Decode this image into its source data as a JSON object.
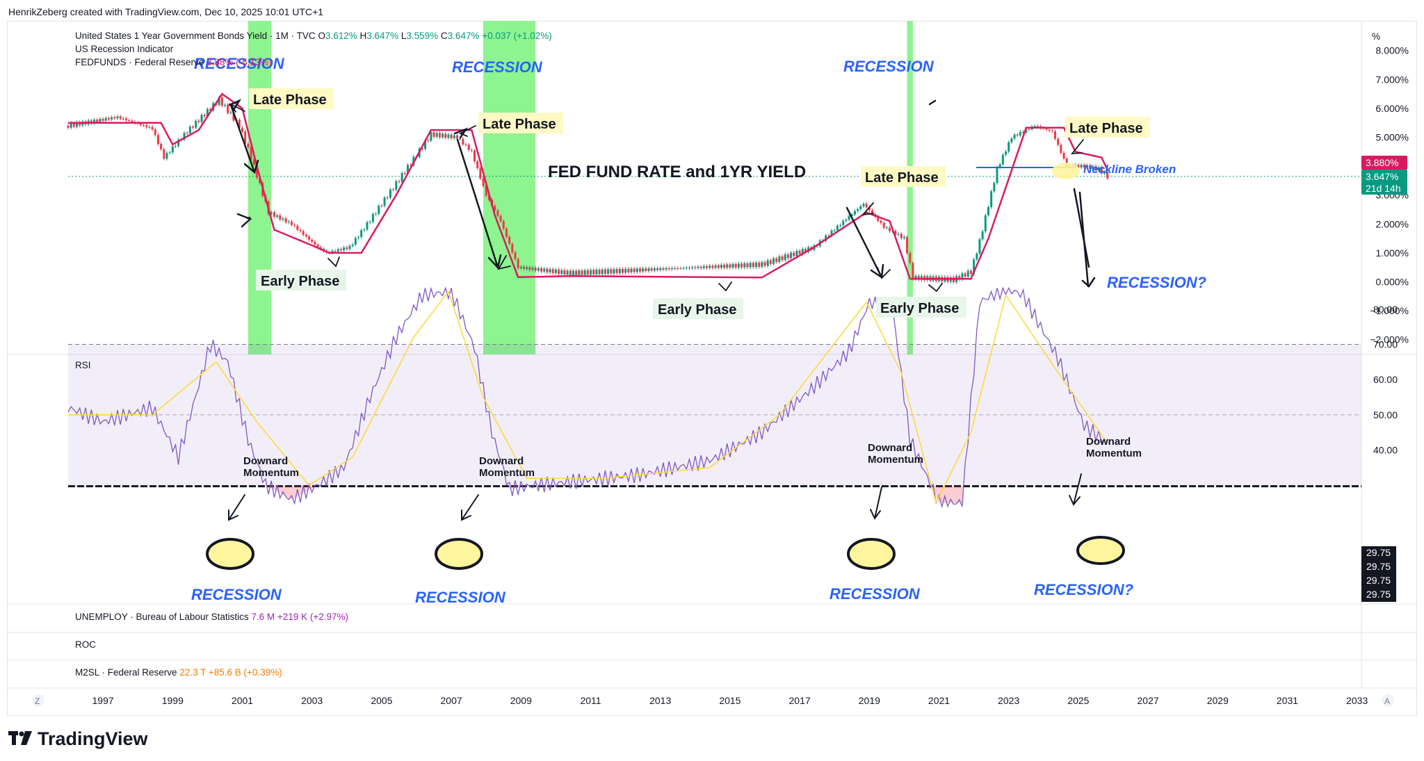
{
  "credit": "HenrikZeberg created with TradingView.com, Dec 10, 2025 10:01 UTC+1",
  "legend": {
    "symbol": "United States 1 Year Government Bonds Yield · 1M · TVC",
    "o_label": "O",
    "o_value": "3.612%",
    "h_label": "H",
    "h_value": "3.647%",
    "l_label": "L",
    "l_value": "3.559%",
    "c_label": "C",
    "c_value": "3.647%",
    "change": "+0.037 (+1.02%)",
    "indicator": "US Recession Indicator",
    "fedfunds": "FEDFUNDS · Federal Reserve",
    "fedfunds_value": "3.88% (-5.13%)"
  },
  "pct_button": "%",
  "title": "FED FUND RATE and 1YR YIELD",
  "annotations": {
    "recession": "RECESSION",
    "recession_q": "RECESSION?",
    "late_phase": "Late Phase",
    "early_phase": "Early Phase",
    "neckline": "Neckline Broken",
    "momentum_1": "Downard",
    "momentum_2": "Momentum"
  },
  "price_axis": {
    "ticks": [
      "8.000%",
      "7.000%",
      "6.000%",
      "5.000%",
      "4.000%",
      "3.000%",
      "2.000%",
      "1.000%",
      "0.000%",
      "−1.000%",
      "−2.000%"
    ],
    "fedfunds_label": "3.880%",
    "yield_label": "3.647%",
    "countdown": "21d 14h"
  },
  "rsi": {
    "label": "RSI",
    "ticks": [
      "80.00",
      "70.00",
      "60.00",
      "50.00",
      "40.00"
    ],
    "level_labels": [
      "29.75",
      "29.75",
      "29.75",
      "29.75"
    ]
  },
  "subpanes": {
    "unemploy": "UNEMPLOY · Bureau of Labour Statistics",
    "unemploy_value": "7.6 M",
    "unemploy_change": "+219 K (+2.97%)",
    "roc": "ROC",
    "m2sl": "M2SL · Federal Reserve",
    "m2sl_value": "22.3 T",
    "m2sl_change": "+85.6 B (+0.39%)"
  },
  "time_axis": {
    "years": [
      "1997",
      "1999",
      "2001",
      "2003",
      "2005",
      "2007",
      "2009",
      "2011",
      "2013",
      "2015",
      "2017",
      "2019",
      "2021",
      "2023",
      "2025",
      "2027",
      "2029",
      "2031",
      "2033"
    ],
    "left_btn": "Z",
    "right_btn": "A"
  },
  "logo": "TradingView",
  "colors": {
    "fedfunds": "#d81b60",
    "up": "#089981",
    "down": "#f23645",
    "recession": "#79f27b",
    "rsi": "#7e57c2",
    "rsi_ma": "#fdd835",
    "annotation_blue": "#2962ff"
  },
  "chart_data": [
    {
      "type": "line",
      "title": "FED FUND RATE and 1YR YIELD",
      "ylim": [
        -2.5,
        8.5
      ],
      "recession_periods": [
        [
          "2001-03",
          "2001-11"
        ],
        [
          "2007-12",
          "2009-06"
        ],
        [
          "2020-02",
          "2020-04"
        ]
      ],
      "series": [
        {
          "name": "FEDFUNDS",
          "x": [
            "1996-01",
            "1997-06",
            "1998-09",
            "1999-01",
            "1999-10",
            "2000-06",
            "2001-01",
            "2001-06",
            "2001-12",
            "2002-12",
            "2003-07",
            "2004-06",
            "2005-06",
            "2006-06",
            "2007-08",
            "2008-04",
            "2008-12",
            "2010-06",
            "2015-12",
            "2017-06",
            "2018-12",
            "2019-08",
            "2020-03",
            "2021-12",
            "2022-06",
            "2023-07",
            "2024-08",
            "2024-12",
            "2025-09",
            "2025-11"
          ],
          "values": [
            5.5,
            5.5,
            5.5,
            4.75,
            5.25,
            6.5,
            6.0,
            4.0,
            1.8,
            1.3,
            1.0,
            1.0,
            3.0,
            5.25,
            5.25,
            2.3,
            0.16,
            0.2,
            0.15,
            1.2,
            2.4,
            2.1,
            0.1,
            0.1,
            1.5,
            5.33,
            5.33,
            4.5,
            4.3,
            3.88
          ]
        },
        {
          "name": "United States 1 Year Government Bonds Yield",
          "x": [
            "1996-01",
            "1997-06",
            "1998-06",
            "1998-10",
            "1999-06",
            "2000-05",
            "2000-12",
            "2001-04",
            "2001-10",
            "2002-06",
            "2003-03",
            "2003-06",
            "2004-02",
            "2004-08",
            "2005-06",
            "2006-06",
            "2007-03",
            "2007-08",
            "2008-01",
            "2008-06",
            "2008-12",
            "2010-06",
            "2015-12",
            "2017-06",
            "2018-11",
            "2019-06",
            "2020-01",
            "2020-04",
            "2021-06",
            "2021-12",
            "2022-03",
            "2022-09",
            "2023-02",
            "2023-10",
            "2024-04",
            "2024-09",
            "2025-03",
            "2025-08",
            "2025-11"
          ],
          "values": [
            5.4,
            5.7,
            5.3,
            4.3,
            5.2,
            6.3,
            5.4,
            4.3,
            2.4,
            2.0,
            1.2,
            1.0,
            1.2,
            2.0,
            3.4,
            5.1,
            5.0,
            4.5,
            3.0,
            2.1,
            0.5,
            0.3,
            0.6,
            1.2,
            2.7,
            1.9,
            1.5,
            0.15,
            0.07,
            0.35,
            1.4,
            3.9,
            5.0,
            5.4,
            5.2,
            4.0,
            4.0,
            3.9,
            3.647
          ]
        }
      ]
    },
    {
      "type": "line",
      "title": "RSI",
      "ylim": [
        24,
        85
      ],
      "levels": [
        70,
        50,
        29.75
      ],
      "series": [
        {
          "name": "RSI",
          "x": [
            "1996-01",
            "1997-01",
            "1998-06",
            "1999-03",
            "2000-02",
            "2000-08",
            "2001-03",
            "2001-09",
            "2002-06",
            "2003-03",
            "2003-12",
            "2004-09",
            "2005-06",
            "2006-03",
            "2007-01",
            "2007-09",
            "2008-03",
            "2008-09",
            "2009-06",
            "2010-06",
            "2012-06",
            "2014-06",
            "2015-12",
            "2017-06",
            "2018-06",
            "2019-01",
            "2019-09",
            "2020-03",
            "2021-01",
            "2021-09",
            "2022-03",
            "2022-12",
            "2023-06",
            "2024-06",
            "2025-03",
            "2025-11"
          ],
          "values": [
            52,
            48,
            52,
            38,
            70,
            65,
            43,
            30,
            26,
            30,
            35,
            55,
            72,
            84,
            85,
            69,
            45,
            29,
            30,
            31,
            33,
            37,
            45,
            58,
            68,
            82,
            80,
            43,
            25,
            25,
            82,
            86,
            84,
            66,
            47,
            42
          ]
        },
        {
          "name": "RSI-based MA",
          "x": [
            "1996-01",
            "1998-06",
            "2000-04",
            "2001-06",
            "2002-12",
            "2004-03",
            "2005-12",
            "2006-12",
            "2007-12",
            "2009-03",
            "2011-06",
            "2014-06",
            "2016-06",
            "2018-12",
            "2019-12",
            "2020-12",
            "2021-12",
            "2022-12",
            "2024-06",
            "2025-11"
          ],
          "values": [
            50,
            50,
            65,
            48,
            30,
            38,
            72,
            85,
            55,
            32,
            32,
            35,
            50,
            82,
            62,
            25,
            45,
            84,
            62,
            42
          ]
        }
      ]
    }
  ]
}
